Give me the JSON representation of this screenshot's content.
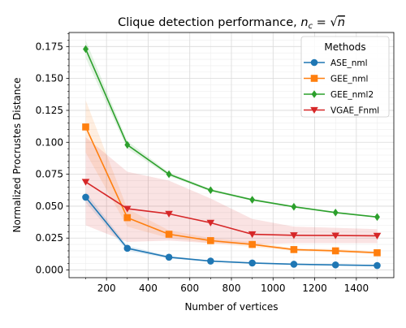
{
  "chart_data": {
    "type": "line",
    "title": "Clique detection performance, ",
    "title_math": {
      "n": "n",
      "sub": "c",
      "eq": " = ",
      "sqrt": "√",
      "rad": "n"
    },
    "xlabel": "Number of vertices",
    "ylabel": "Normalized Procrustes Distance",
    "xlim": [
      20,
      1580
    ],
    "ylim": [
      -0.006,
      0.186
    ],
    "xticks": [
      200,
      400,
      600,
      800,
      1000,
      1200,
      1400
    ],
    "yticks": [
      "0.000",
      "0.025",
      "0.050",
      "0.075",
      "0.100",
      "0.125",
      "0.150",
      "0.175"
    ],
    "grid": true,
    "legend_title": "Methods",
    "legend_position": "upper right",
    "x": [
      100,
      300,
      500,
      700,
      900,
      1100,
      1300,
      1500
    ],
    "series": [
      {
        "name": "ASE_nml",
        "color": "#1f77b4",
        "marker": "circle",
        "values": [
          0.057,
          0.017,
          0.01,
          0.007,
          0.0055,
          0.0045,
          0.004,
          0.0035
        ],
        "lower": [
          0.053,
          0.015,
          0.009,
          0.0065,
          0.005,
          0.004,
          0.0035,
          0.003
        ],
        "upper": [
          0.061,
          0.019,
          0.011,
          0.0075,
          0.006,
          0.005,
          0.0045,
          0.004
        ]
      },
      {
        "name": "GEE_nml",
        "color": "#ff7f0e",
        "marker": "square",
        "values": [
          0.112,
          0.041,
          0.028,
          0.023,
          0.02,
          0.016,
          0.015,
          0.0135
        ],
        "lower": [
          0.092,
          0.034,
          0.025,
          0.021,
          0.018,
          0.015,
          0.0135,
          0.0125
        ],
        "upper": [
          0.133,
          0.048,
          0.031,
          0.025,
          0.022,
          0.017,
          0.0165,
          0.0145
        ]
      },
      {
        "name": "GEE_nml2",
        "color": "#2ca02c",
        "marker": "diamond",
        "values": [
          0.173,
          0.098,
          0.075,
          0.0625,
          0.055,
          0.0495,
          0.045,
          0.0415
        ],
        "lower": [
          0.166,
          0.095,
          0.0735,
          0.0615,
          0.0542,
          0.0488,
          0.0444,
          0.041
        ],
        "upper": [
          0.18,
          0.101,
          0.0765,
          0.0635,
          0.0558,
          0.0502,
          0.0456,
          0.042
        ]
      },
      {
        "name": "VGAE_Fnml",
        "color": "#d62728",
        "marker": "triangle-down",
        "values": [
          0.069,
          0.048,
          0.044,
          0.037,
          0.028,
          0.0272,
          0.027,
          0.0268
        ],
        "lower": [
          0.035,
          0.022,
          0.023,
          0.021,
          0.02,
          0.021,
          0.021,
          0.021
        ],
        "upper": [
          0.104,
          0.077,
          0.07,
          0.056,
          0.04,
          0.034,
          0.033,
          0.032
        ]
      }
    ]
  }
}
